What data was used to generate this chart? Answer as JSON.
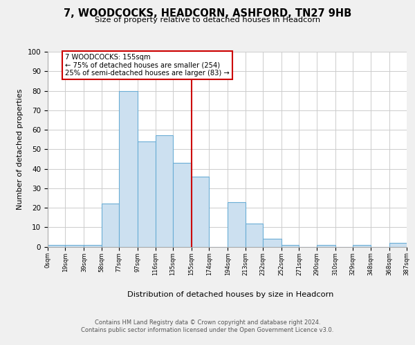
{
  "title": "7, WOODCOCKS, HEADCORN, ASHFORD, TN27 9HB",
  "subtitle": "Size of property relative to detached houses in Headcorn",
  "xlabel": "Distribution of detached houses by size in Headcorn",
  "ylabel": "Number of detached properties",
  "bin_edges": [
    0,
    19,
    39,
    58,
    77,
    97,
    116,
    135,
    155,
    174,
    194,
    213,
    232,
    252,
    271,
    290,
    310,
    329,
    348,
    368,
    387
  ],
  "bin_labels": [
    "0sqm",
    "19sqm",
    "39sqm",
    "58sqm",
    "77sqm",
    "97sqm",
    "116sqm",
    "135sqm",
    "155sqm",
    "174sqm",
    "194sqm",
    "213sqm",
    "232sqm",
    "252sqm",
    "271sqm",
    "290sqm",
    "310sqm",
    "329sqm",
    "348sqm",
    "368sqm",
    "387sqm"
  ],
  "counts": [
    1,
    1,
    1,
    22,
    80,
    54,
    57,
    43,
    36,
    0,
    23,
    12,
    4,
    1,
    0,
    1,
    0,
    1,
    0,
    2
  ],
  "bar_color": "#cce0f0",
  "bar_edge_color": "#6aadd5",
  "property_value": 155,
  "vline_color": "#cc0000",
  "annotation_line1": "7 WOODCOCKS: 155sqm",
  "annotation_line2": "← 75% of detached houses are smaller (254)",
  "annotation_line3": "25% of semi-detached houses are larger (83) →",
  "annotation_boxcolor": "white",
  "annotation_boxedge": "#cc0000",
  "ylim": [
    0,
    100
  ],
  "yticks": [
    0,
    10,
    20,
    30,
    40,
    50,
    60,
    70,
    80,
    90,
    100
  ],
  "background_color": "#f0f0f0",
  "plot_background": "#ffffff",
  "grid_color": "#cccccc",
  "footer_line1": "Contains HM Land Registry data © Crown copyright and database right 2024.",
  "footer_line2": "Contains public sector information licensed under the Open Government Licence v3.0."
}
